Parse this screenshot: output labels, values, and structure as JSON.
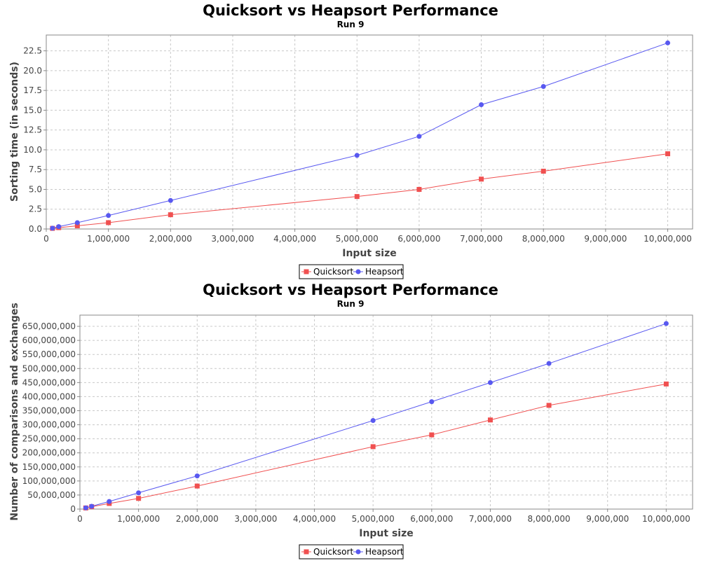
{
  "colors": {
    "quicksort": "#f05050",
    "heapsort": "#5858f0"
  },
  "chart_data": [
    {
      "type": "line",
      "title": "Quicksort vs Heapsort Performance",
      "subtitle": "Run 9",
      "xlabel": "Input size",
      "ylabel": "Sorting time (in seconds)",
      "xlim": [
        0,
        10400000
      ],
      "ylim": [
        0,
        24.5
      ],
      "xticks": [
        0,
        1000000,
        2000000,
        3000000,
        4000000,
        5000000,
        6000000,
        7000000,
        8000000,
        9000000,
        10000000
      ],
      "xtick_labels": [
        "0",
        "1,000,000",
        "2,000,000",
        "3,000,000",
        "4,000,000",
        "5,000,000",
        "6,000,000",
        "7,000,000",
        "8,000,000",
        "9,000,000",
        "10,000,000"
      ],
      "yticks": [
        0,
        2.5,
        5,
        7.5,
        10,
        12.5,
        15,
        17.5,
        20,
        22.5
      ],
      "ytick_labels": [
        "0.0",
        "2.5",
        "5.0",
        "7.5",
        "10.0",
        "12.5",
        "15.0",
        "17.5",
        "20.0",
        "22.5"
      ],
      "grid": true,
      "legend_position": "bottom-center",
      "x": [
        100000,
        200000,
        500000,
        1000000,
        2000000,
        5000000,
        6000000,
        7000000,
        8000000,
        10000000
      ],
      "series": [
        {
          "name": "Quicksort",
          "marker": "square",
          "values": [
            0.08,
            0.17,
            0.4,
            0.8,
            1.8,
            4.1,
            5.0,
            6.3,
            7.3,
            9.5
          ]
        },
        {
          "name": "Heapsort",
          "marker": "circle",
          "values": [
            0.1,
            0.3,
            0.8,
            1.7,
            3.6,
            9.3,
            11.7,
            15.7,
            18.0,
            23.5
          ]
        }
      ]
    },
    {
      "type": "line",
      "title": "Quicksort vs Heapsort Performance",
      "subtitle": "Run 9",
      "xlabel": "Input size",
      "ylabel": "Number of comparisons and exchanges",
      "xlim": [
        0,
        10450000
      ],
      "ylim": [
        0,
        690000000
      ],
      "xticks": [
        0,
        1000000,
        2000000,
        3000000,
        4000000,
        5000000,
        6000000,
        7000000,
        8000000,
        9000000,
        10000000
      ],
      "xtick_labels": [
        "0",
        "1,000,000",
        "2,000,000",
        "3,000,000",
        "4,000,000",
        "5,000,000",
        "6,000,000",
        "7,000,000",
        "8,000,000",
        "9,000,000",
        "10,000,000"
      ],
      "yticks": [
        0,
        50000000,
        100000000,
        150000000,
        200000000,
        250000000,
        300000000,
        350000000,
        400000000,
        450000000,
        500000000,
        550000000,
        600000000,
        650000000
      ],
      "ytick_labels": [
        "0",
        "50,000,000",
        "100,000,000",
        "150,000,000",
        "200,000,000",
        "250,000,000",
        "300,000,000",
        "350,000,000",
        "400,000,000",
        "450,000,000",
        "500,000,000",
        "550,000,000",
        "600,000,000",
        "650,000,000"
      ],
      "grid": true,
      "legend_position": "bottom-center",
      "x": [
        100000,
        200000,
        500000,
        1000000,
        2000000,
        5000000,
        6000000,
        7000000,
        8000000,
        10000000
      ],
      "series": [
        {
          "name": "Quicksort",
          "marker": "square",
          "values": [
            4000000,
            8500000,
            20000000,
            38000000,
            82000000,
            222000000,
            264000000,
            317000000,
            369000000,
            445000000
          ]
        },
        {
          "name": "Heapsort",
          "marker": "circle",
          "values": [
            4500000,
            10000000,
            27000000,
            58000000,
            118000000,
            315000000,
            382000000,
            450000000,
            518000000,
            660000000
          ]
        }
      ]
    }
  ]
}
